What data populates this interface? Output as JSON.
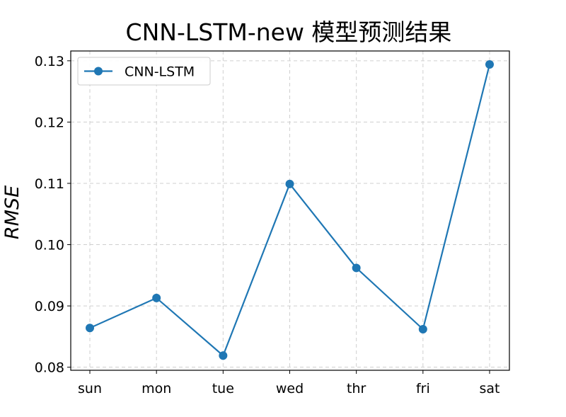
{
  "chart_data": {
    "type": "line",
    "title": "CNN-LSTM-new 模型预测结果",
    "xlabel": "",
    "ylabel": "RMSE",
    "categories": [
      "sun",
      "mon",
      "tue",
      "wed",
      "thr",
      "fri",
      "sat"
    ],
    "series": [
      {
        "name": "CNN-LSTM",
        "values": [
          0.0864,
          0.0913,
          0.0819,
          0.1099,
          0.0962,
          0.0862,
          0.1294
        ],
        "color": "#1f77b4",
        "marker": "circle"
      }
    ],
    "ylim": [
      0.0795,
      0.1316
    ],
    "yticks": [
      0.08,
      0.09,
      0.1,
      0.11,
      0.12,
      0.13
    ],
    "ytick_labels": [
      "0.08",
      "0.09",
      "0.10",
      "0.11",
      "0.12",
      "0.13"
    ],
    "grid": true,
    "legend": "top-left"
  }
}
